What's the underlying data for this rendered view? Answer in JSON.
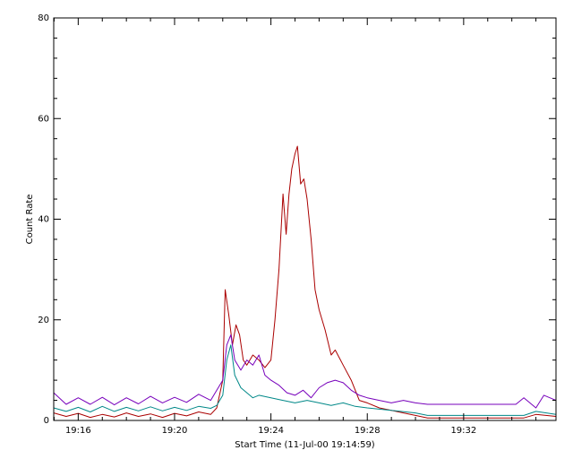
{
  "chart_data": {
    "type": "line",
    "xlabel": "Start Time (11-Jul-00 19:14:59)",
    "ylabel": "Count Rate",
    "xlim": [
      "19:14:59",
      "19:35:50"
    ],
    "ylim": [
      0,
      80
    ],
    "x_ticks": [
      "19:16",
      "19:20",
      "19:24",
      "19:28",
      "19:32"
    ],
    "y_ticks": [
      0,
      20,
      40,
      60,
      80
    ],
    "grid": false,
    "legend": "none",
    "series": [
      {
        "color": "#aa0000",
        "points": [
          [
            "19:14:59",
            1.5
          ],
          [
            "19:15:30",
            0.8
          ],
          [
            "19:16:00",
            1.4
          ],
          [
            "19:16:30",
            0.6
          ],
          [
            "19:17:00",
            1.2
          ],
          [
            "19:17:30",
            0.7
          ],
          [
            "19:18:00",
            1.5
          ],
          [
            "19:18:30",
            0.8
          ],
          [
            "19:19:00",
            1.3
          ],
          [
            "19:19:30",
            0.6
          ],
          [
            "19:20:00",
            1.4
          ],
          [
            "19:20:30",
            0.9
          ],
          [
            "19:21:00",
            1.7
          ],
          [
            "19:21:30",
            1.2
          ],
          [
            "19:21:45",
            2.5
          ],
          [
            "19:22:00",
            8
          ],
          [
            "19:22:06",
            26
          ],
          [
            "19:22:15",
            21
          ],
          [
            "19:22:24",
            15
          ],
          [
            "19:22:33",
            19
          ],
          [
            "19:22:42",
            17
          ],
          [
            "19:22:51",
            12
          ],
          [
            "19:23:00",
            11
          ],
          [
            "19:23:15",
            13
          ],
          [
            "19:23:30",
            12
          ],
          [
            "19:23:45",
            10.5
          ],
          [
            "19:24:00",
            12
          ],
          [
            "19:24:10",
            20
          ],
          [
            "19:24:20",
            30
          ],
          [
            "19:24:30",
            45
          ],
          [
            "19:24:38",
            37
          ],
          [
            "19:24:45",
            45
          ],
          [
            "19:24:52",
            50
          ],
          [
            "19:25:00",
            53
          ],
          [
            "19:25:06",
            54.5
          ],
          [
            "19:25:14",
            47
          ],
          [
            "19:25:22",
            48
          ],
          [
            "19:25:30",
            44
          ],
          [
            "19:25:40",
            36
          ],
          [
            "19:25:50",
            26
          ],
          [
            "19:26:00",
            22
          ],
          [
            "19:26:15",
            18
          ],
          [
            "19:26:30",
            13
          ],
          [
            "19:26:40",
            14
          ],
          [
            "19:27:00",
            11
          ],
          [
            "19:27:20",
            8
          ],
          [
            "19:27:40",
            4
          ],
          [
            "19:28:00",
            3.5
          ],
          [
            "19:28:30",
            2.5
          ],
          [
            "19:29:00",
            2
          ],
          [
            "19:29:30",
            1.5
          ],
          [
            "19:30:00",
            1
          ],
          [
            "19:30:30",
            0.5
          ],
          [
            "19:34:30",
            0.5
          ],
          [
            "19:35:00",
            1.2
          ],
          [
            "19:35:50",
            0.8
          ]
        ]
      },
      {
        "color": "#7700bb",
        "points": [
          [
            "19:14:59",
            5.5
          ],
          [
            "19:15:30",
            3.2
          ],
          [
            "19:16:00",
            4.5
          ],
          [
            "19:16:30",
            3.2
          ],
          [
            "19:17:00",
            4.6
          ],
          [
            "19:17:30",
            3.1
          ],
          [
            "19:18:00",
            4.5
          ],
          [
            "19:18:30",
            3.3
          ],
          [
            "19:19:00",
            4.8
          ],
          [
            "19:19:30",
            3.5
          ],
          [
            "19:20:00",
            4.6
          ],
          [
            "19:20:30",
            3.6
          ],
          [
            "19:21:00",
            5.2
          ],
          [
            "19:21:30",
            4.0
          ],
          [
            "19:21:45",
            6.0
          ],
          [
            "19:22:00",
            8
          ],
          [
            "19:22:10",
            15
          ],
          [
            "19:22:20",
            17
          ],
          [
            "19:22:30",
            12
          ],
          [
            "19:22:45",
            10
          ],
          [
            "19:23:00",
            12
          ],
          [
            "19:23:15",
            11
          ],
          [
            "19:23:30",
            13
          ],
          [
            "19:23:45",
            9
          ],
          [
            "19:24:00",
            8
          ],
          [
            "19:24:20",
            7
          ],
          [
            "19:24:40",
            5.5
          ],
          [
            "19:25:00",
            5
          ],
          [
            "19:25:20",
            6
          ],
          [
            "19:25:40",
            4.5
          ],
          [
            "19:26:00",
            6.5
          ],
          [
            "19:26:20",
            7.5
          ],
          [
            "19:26:40",
            8
          ],
          [
            "19:27:00",
            7.5
          ],
          [
            "19:27:20",
            6
          ],
          [
            "19:27:40",
            5
          ],
          [
            "19:28:00",
            4.5
          ],
          [
            "19:28:30",
            4
          ],
          [
            "19:29:00",
            3.5
          ],
          [
            "19:29:30",
            4
          ],
          [
            "19:30:00",
            3.5
          ],
          [
            "19:30:30",
            3.2
          ],
          [
            "19:34:10",
            3.2
          ],
          [
            "19:34:30",
            4.5
          ],
          [
            "19:35:00",
            2.5
          ],
          [
            "19:35:20",
            5
          ],
          [
            "19:35:50",
            4
          ]
        ]
      },
      {
        "color": "#008888",
        "points": [
          [
            "19:14:59",
            2.5
          ],
          [
            "19:15:30",
            1.8
          ],
          [
            "19:16:00",
            2.6
          ],
          [
            "19:16:30",
            1.7
          ],
          [
            "19:17:00",
            2.8
          ],
          [
            "19:17:30",
            1.8
          ],
          [
            "19:18:00",
            2.6
          ],
          [
            "19:18:30",
            1.9
          ],
          [
            "19:19:00",
            2.7
          ],
          [
            "19:19:30",
            1.9
          ],
          [
            "19:20:00",
            2.6
          ],
          [
            "19:20:30",
            2.0
          ],
          [
            "19:21:00",
            2.8
          ],
          [
            "19:21:30",
            2.4
          ],
          [
            "19:21:45",
            3.0
          ],
          [
            "19:22:00",
            5
          ],
          [
            "19:22:10",
            12
          ],
          [
            "19:22:20",
            15
          ],
          [
            "19:22:30",
            9
          ],
          [
            "19:22:45",
            6.5
          ],
          [
            "19:23:00",
            5.5
          ],
          [
            "19:23:15",
            4.5
          ],
          [
            "19:23:30",
            5
          ],
          [
            "19:24:00",
            4.5
          ],
          [
            "19:24:30",
            4
          ],
          [
            "19:25:00",
            3.5
          ],
          [
            "19:25:30",
            4
          ],
          [
            "19:26:00",
            3.5
          ],
          [
            "19:26:30",
            3
          ],
          [
            "19:27:00",
            3.5
          ],
          [
            "19:27:30",
            2.8
          ],
          [
            "19:28:00",
            2.5
          ],
          [
            "19:29:00",
            2.0
          ],
          [
            "19:30:00",
            1.5
          ],
          [
            "19:30:30",
            1.0
          ],
          [
            "19:34:30",
            1.0
          ],
          [
            "19:35:00",
            1.8
          ],
          [
            "19:35:50",
            1.2
          ]
        ]
      }
    ]
  }
}
